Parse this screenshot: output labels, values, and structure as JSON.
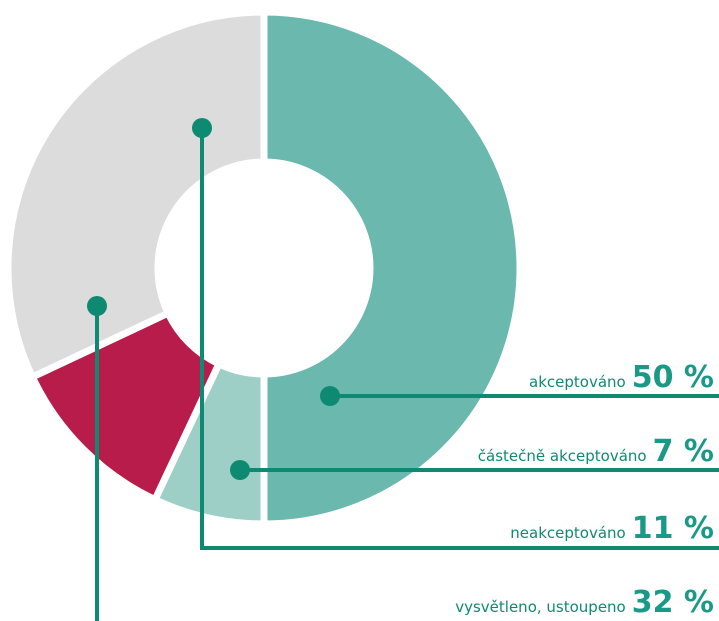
{
  "chart_data": {
    "type": "donut",
    "categories": [
      "akceptováno",
      "částečně akceptováno",
      "neakceptováno",
      "vysvětleno, ustoupeno"
    ],
    "values": [
      50,
      7,
      11,
      32
    ],
    "value_labels": [
      "50 %",
      "7 %",
      "11 %",
      "32 %"
    ],
    "colors": [
      "#6ab8ae",
      "#9ecfc7",
      "#b81c4a",
      "#dcdcdd"
    ]
  }
}
